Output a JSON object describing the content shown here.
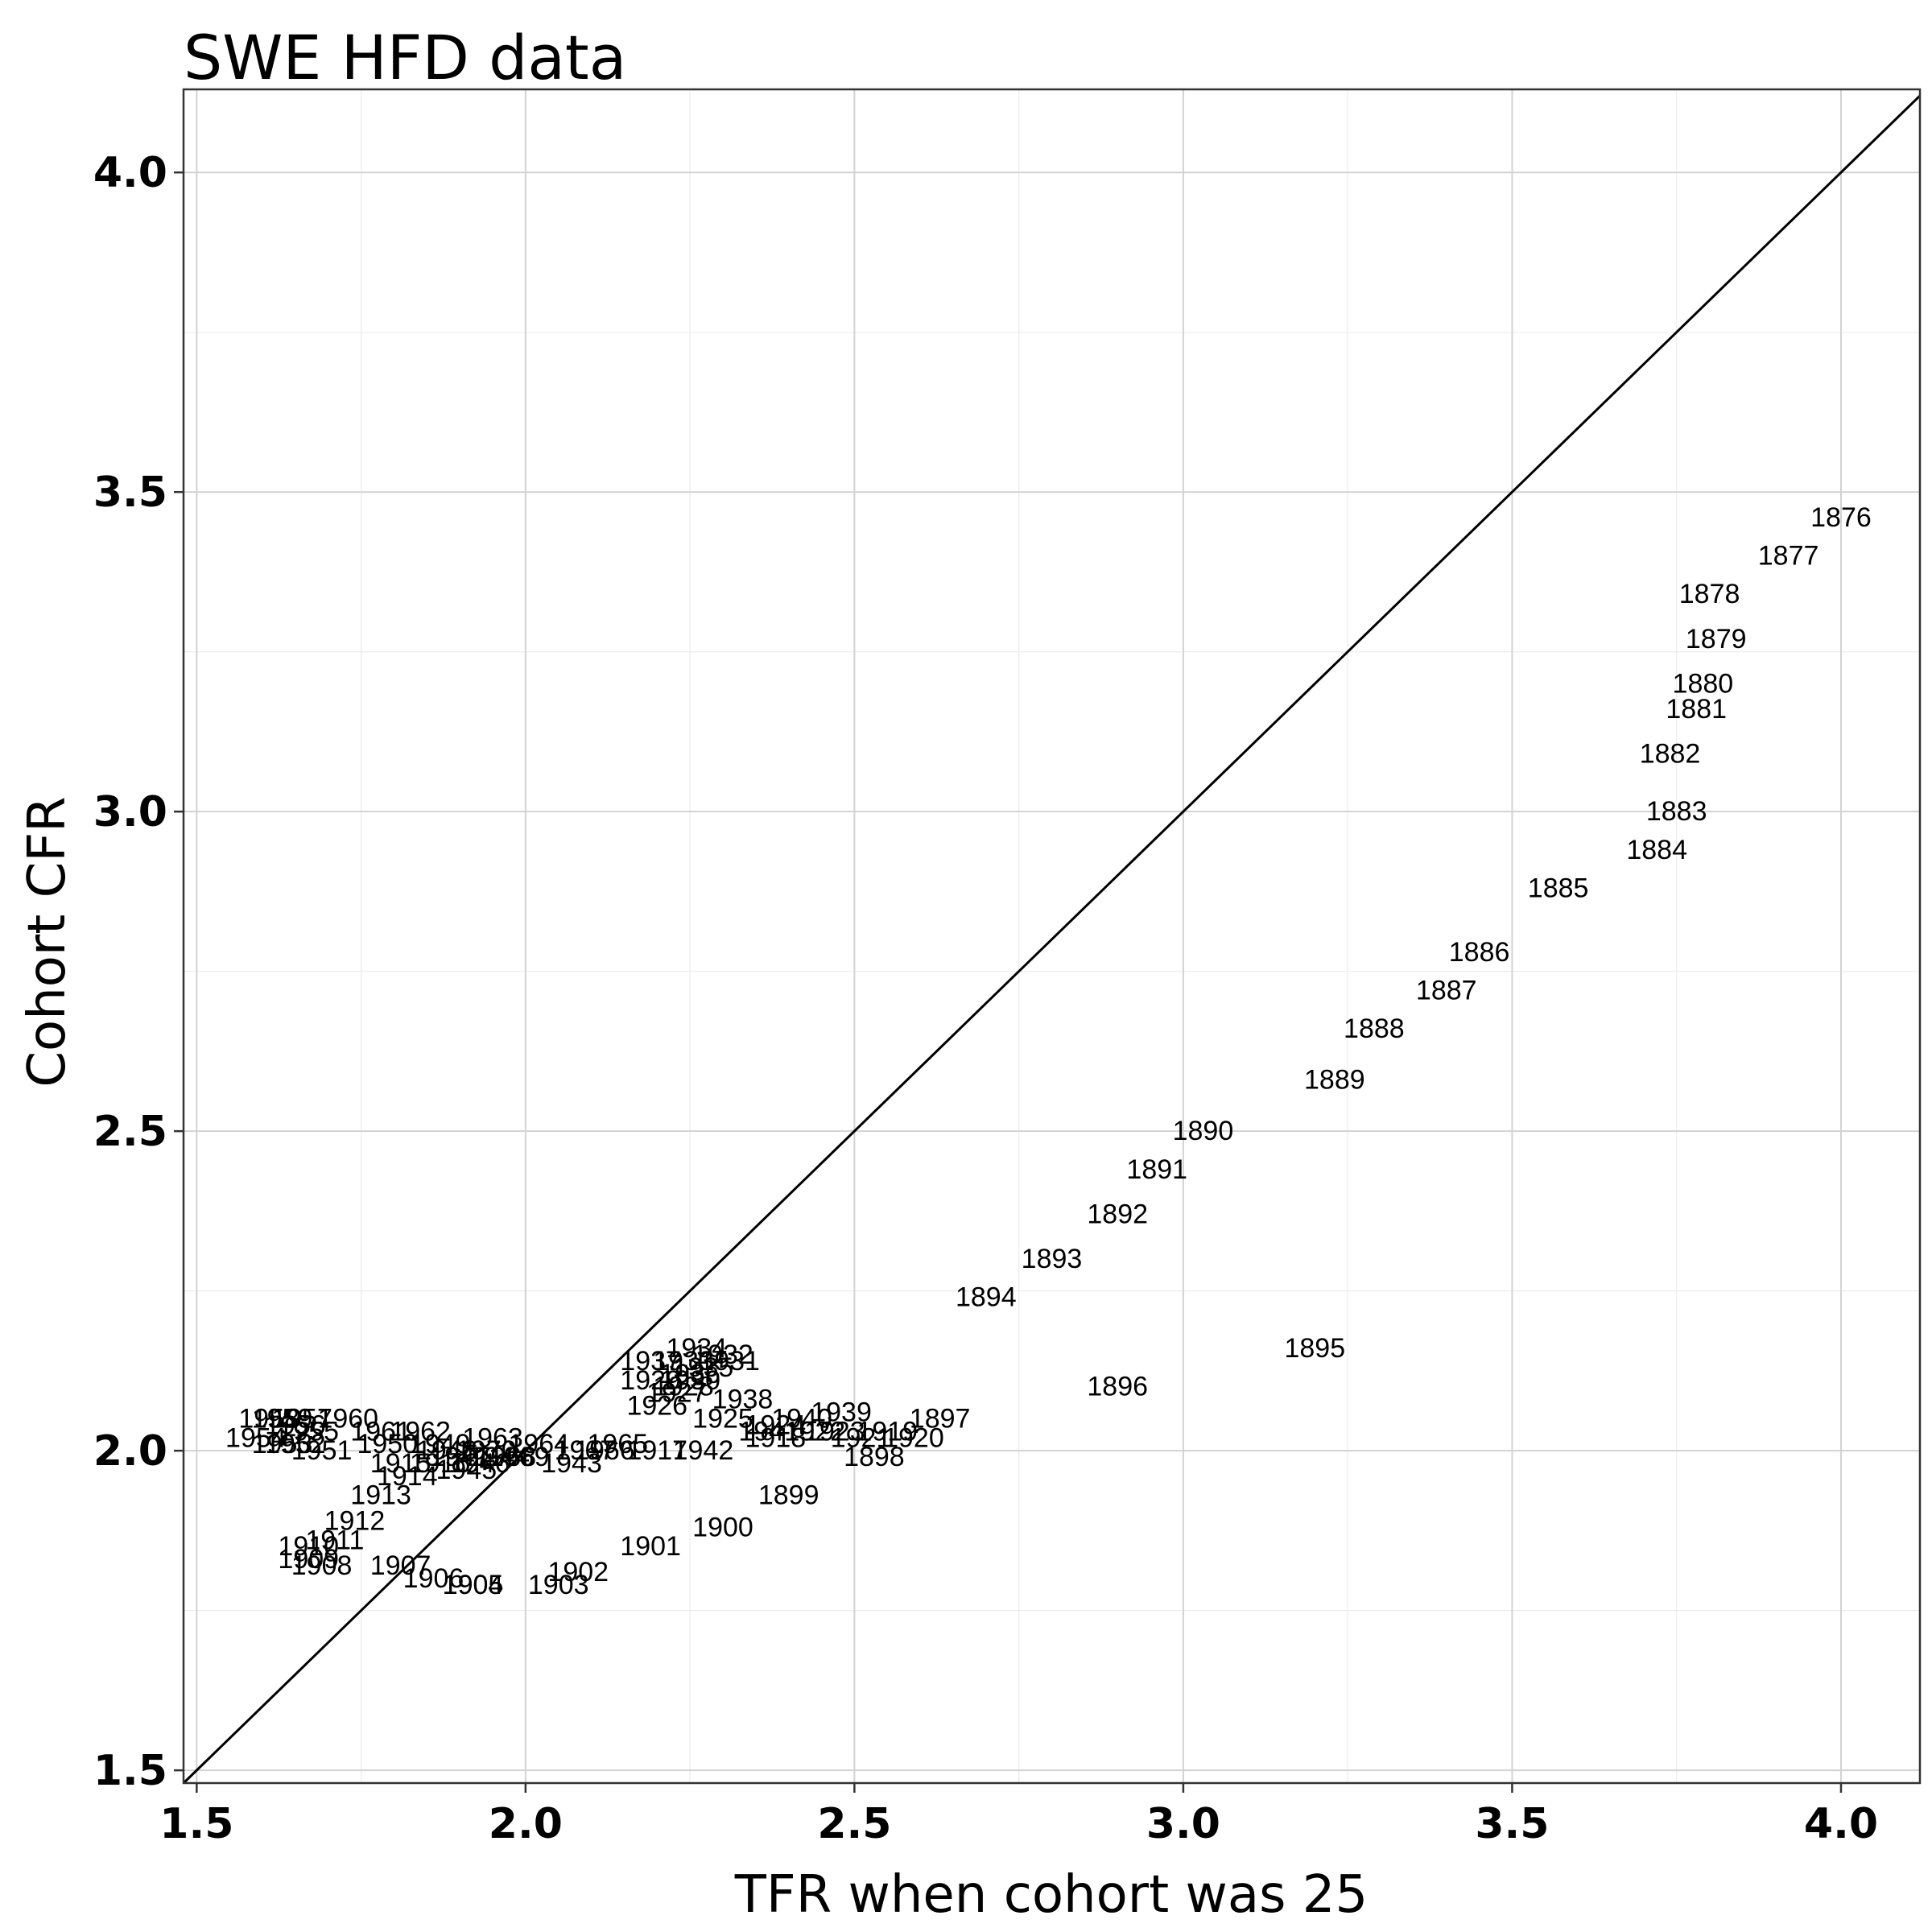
{
  "chart_data": {
    "type": "scatter",
    "title": "SWE HFD data",
    "xlabel": "TFR when cohort was 25",
    "ylabel": "Cohort CFR",
    "xlim": [
      1.48,
      4.12
    ],
    "ylim": [
      1.48,
      4.13
    ],
    "x_ticks": [
      "1.5",
      "2.0",
      "2.5",
      "3.0",
      "3.5",
      "4.0"
    ],
    "y_ticks": [
      "1.5",
      "2.0",
      "2.5",
      "3.0",
      "3.5",
      "4.0"
    ],
    "grid": true,
    "reference_line": "y = x",
    "points": [
      {
        "label": "1876",
        "x": 4.0,
        "y": 3.46
      },
      {
        "label": "1877",
        "x": 3.92,
        "y": 3.4
      },
      {
        "label": "1878",
        "x": 3.8,
        "y": 3.34
      },
      {
        "label": "1879",
        "x": 3.81,
        "y": 3.27
      },
      {
        "label": "1880",
        "x": 3.79,
        "y": 3.2
      },
      {
        "label": "1881",
        "x": 3.78,
        "y": 3.16
      },
      {
        "label": "1882",
        "x": 3.74,
        "y": 3.09
      },
      {
        "label": "1883",
        "x": 3.75,
        "y": 3.0
      },
      {
        "label": "1884",
        "x": 3.72,
        "y": 2.94
      },
      {
        "label": "1885",
        "x": 3.57,
        "y": 2.88
      },
      {
        "label": "1886",
        "x": 3.45,
        "y": 2.78
      },
      {
        "label": "1887",
        "x": 3.4,
        "y": 2.72
      },
      {
        "label": "1888",
        "x": 3.29,
        "y": 2.66
      },
      {
        "label": "1889",
        "x": 3.23,
        "y": 2.58
      },
      {
        "label": "1890",
        "x": 3.03,
        "y": 2.5
      },
      {
        "label": "1891",
        "x": 2.96,
        "y": 2.44
      },
      {
        "label": "1892",
        "x": 2.9,
        "y": 2.37
      },
      {
        "label": "1893",
        "x": 2.8,
        "y": 2.3
      },
      {
        "label": "1894",
        "x": 2.7,
        "y": 2.24
      },
      {
        "label": "1895",
        "x": 3.2,
        "y": 2.16
      },
      {
        "label": "1896",
        "x": 2.9,
        "y": 2.1
      },
      {
        "label": "1897",
        "x": 2.63,
        "y": 2.05
      },
      {
        "label": "1898",
        "x": 2.53,
        "y": 1.99
      },
      {
        "label": "1899",
        "x": 2.4,
        "y": 1.93
      },
      {
        "label": "1900",
        "x": 2.3,
        "y": 1.88
      },
      {
        "label": "1901",
        "x": 2.19,
        "y": 1.85
      },
      {
        "label": "1902",
        "x": 2.08,
        "y": 1.81
      },
      {
        "label": "1903",
        "x": 2.05,
        "y": 1.79
      },
      {
        "label": "1904",
        "x": 1.92,
        "y": 1.79
      },
      {
        "label": "1905",
        "x": 1.92,
        "y": 1.79
      },
      {
        "label": "1906",
        "x": 1.86,
        "y": 1.8
      },
      {
        "label": "1907",
        "x": 1.81,
        "y": 1.82
      },
      {
        "label": "1908",
        "x": 1.69,
        "y": 1.82
      },
      {
        "label": "1909",
        "x": 1.67,
        "y": 1.83
      },
      {
        "label": "1910",
        "x": 1.67,
        "y": 1.85
      },
      {
        "label": "1911",
        "x": 1.71,
        "y": 1.86
      },
      {
        "label": "1912",
        "x": 1.74,
        "y": 1.89
      },
      {
        "label": "1913",
        "x": 1.78,
        "y": 1.93
      },
      {
        "label": "1914",
        "x": 1.82,
        "y": 1.96
      },
      {
        "label": "1915",
        "x": 1.81,
        "y": 1.98
      },
      {
        "label": "1916",
        "x": 1.87,
        "y": 1.98
      },
      {
        "label": "1917",
        "x": 2.2,
        "y": 2.0
      },
      {
        "label": "1918",
        "x": 2.38,
        "y": 2.02
      },
      {
        "label": "1919",
        "x": 2.55,
        "y": 2.03
      },
      {
        "label": "1920",
        "x": 2.59,
        "y": 2.02
      },
      {
        "label": "1921",
        "x": 2.51,
        "y": 2.02
      },
      {
        "label": "1922",
        "x": 2.44,
        "y": 2.03
      },
      {
        "label": "1923",
        "x": 2.47,
        "y": 2.03
      },
      {
        "label": "1924",
        "x": 2.38,
        "y": 2.04
      },
      {
        "label": "1925",
        "x": 2.3,
        "y": 2.05
      },
      {
        "label": "1926",
        "x": 2.2,
        "y": 2.07
      },
      {
        "label": "1927",
        "x": 2.23,
        "y": 2.09
      },
      {
        "label": "1928",
        "x": 2.24,
        "y": 2.1
      },
      {
        "label": "1929",
        "x": 2.19,
        "y": 2.11
      },
      {
        "label": "1930",
        "x": 2.25,
        "y": 2.11
      },
      {
        "label": "1931",
        "x": 2.31,
        "y": 2.14
      },
      {
        "label": "1932",
        "x": 2.3,
        "y": 2.15
      },
      {
        "label": "1933",
        "x": 2.24,
        "y": 2.14
      },
      {
        "label": "1934",
        "x": 2.26,
        "y": 2.16
      },
      {
        "label": "1935",
        "x": 2.27,
        "y": 2.13
      },
      {
        "label": "1936",
        "x": 2.25,
        "y": 2.12
      },
      {
        "label": "1937",
        "x": 2.19,
        "y": 2.14
      },
      {
        "label": "1938",
        "x": 2.33,
        "y": 2.08
      },
      {
        "label": "1939",
        "x": 2.48,
        "y": 2.06
      },
      {
        "label": "1940",
        "x": 2.42,
        "y": 2.05
      },
      {
        "label": "1941",
        "x": 2.37,
        "y": 2.03
      },
      {
        "label": "1942",
        "x": 2.27,
        "y": 2.0
      },
      {
        "label": "1943",
        "x": 2.07,
        "y": 1.98
      },
      {
        "label": "1944",
        "x": 1.96,
        "y": 1.99
      },
      {
        "label": "1945",
        "x": 1.91,
        "y": 1.97
      },
      {
        "label": "1946",
        "x": 1.93,
        "y": 1.98
      },
      {
        "label": "1947",
        "x": 1.9,
        "y": 1.99
      },
      {
        "label": "1948",
        "x": 1.88,
        "y": 2.0
      },
      {
        "label": "1949",
        "x": 1.87,
        "y": 2.01
      },
      {
        "label": "1950",
        "x": 1.79,
        "y": 2.01
      },
      {
        "label": "1951",
        "x": 1.69,
        "y": 2.0
      },
      {
        "label": "1952",
        "x": 1.65,
        "y": 2.01
      },
      {
        "label": "1953",
        "x": 1.63,
        "y": 2.01
      },
      {
        "label": "1954",
        "x": 1.59,
        "y": 2.02
      },
      {
        "label": "1955",
        "x": 1.67,
        "y": 2.03
      },
      {
        "label": "1956",
        "x": 1.65,
        "y": 2.04
      },
      {
        "label": "1957",
        "x": 1.66,
        "y": 2.05
      },
      {
        "label": "1958",
        "x": 1.61,
        "y": 2.05
      },
      {
        "label": "1959",
        "x": 1.63,
        "y": 2.05
      },
      {
        "label": "1960",
        "x": 1.73,
        "y": 2.05
      },
      {
        "label": "1961",
        "x": 1.78,
        "y": 2.03
      },
      {
        "label": "1962",
        "x": 1.84,
        "y": 2.03
      },
      {
        "label": "1963",
        "x": 1.95,
        "y": 2.02
      },
      {
        "label": "1964",
        "x": 2.02,
        "y": 2.01
      },
      {
        "label": "1965",
        "x": 2.14,
        "y": 2.01
      },
      {
        "label": "1966",
        "x": 2.12,
        "y": 2.0
      },
      {
        "label": "1967",
        "x": 2.09,
        "y": 2.0
      },
      {
        "label": "1968",
        "x": 1.97,
        "y": 1.99
      },
      {
        "label": "1969",
        "x": 1.99,
        "y": 1.99
      },
      {
        "label": "1970",
        "x": 1.94,
        "y": 2.0
      }
    ]
  }
}
